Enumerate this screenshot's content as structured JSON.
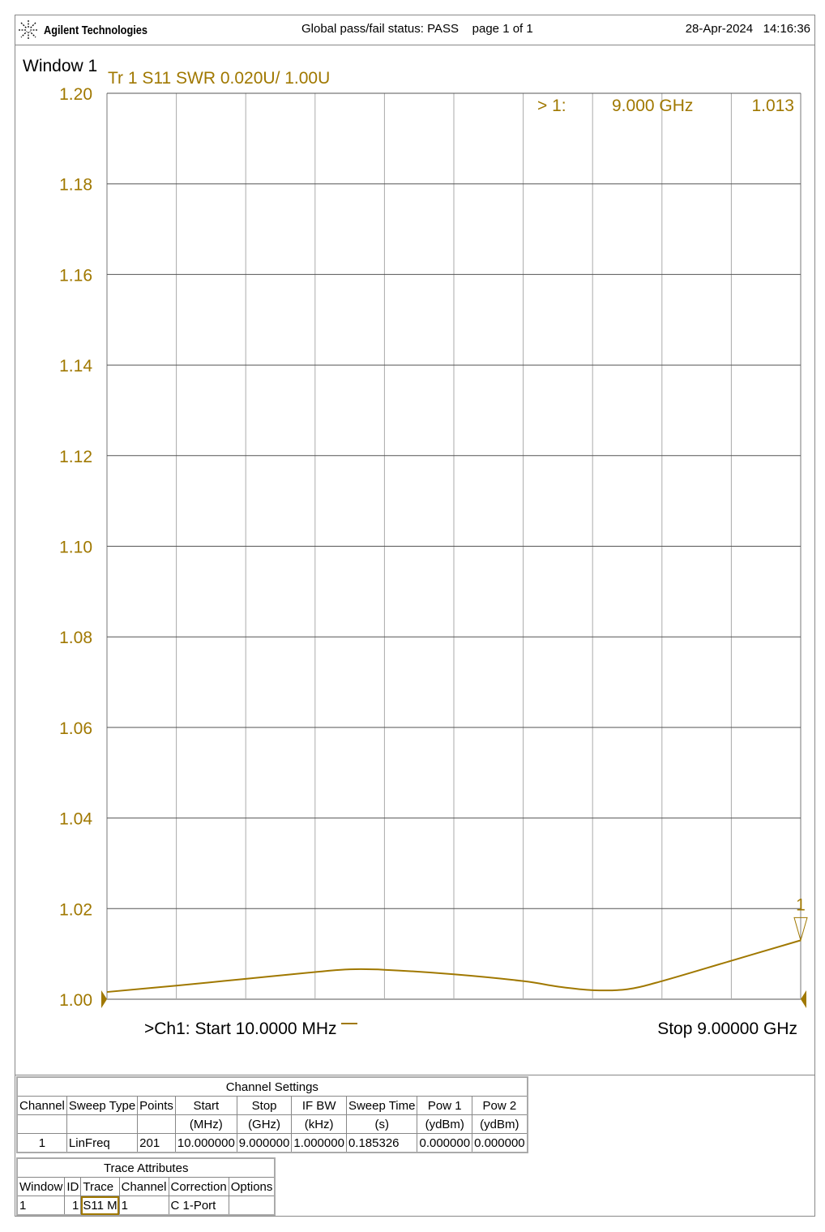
{
  "header": {
    "brand": "Agilent Technologies",
    "status": "Global pass/fail status: PASS",
    "page": "page  1 of  1",
    "date": "28-Apr-2024",
    "time": "14:16:36"
  },
  "window_label": "Window 1",
  "trace_title": "Tr  1   S11 SWR 0.020U/  1.00U",
  "marker": {
    "label": "> 1:",
    "freq": "9.000 GHz",
    "value": "1.013",
    "flag": "1"
  },
  "start_label": ">Ch1:   Start  10.0000 MHz",
  "stop_label": "Stop  9.00000 GHz",
  "colors": {
    "trace": "#a07800",
    "grid": "#999999"
  },
  "chart_data": {
    "type": "line",
    "title": "Tr  1   S11 SWR 0.020U/  1.00U",
    "xlim": [
      0.01,
      9.0
    ],
    "ylim": [
      1.0,
      1.2
    ],
    "yticks": [
      "1.20",
      "1.18",
      "1.16",
      "1.14",
      "1.12",
      "1.10",
      "1.08",
      "1.06",
      "1.04",
      "1.02",
      "1.00"
    ],
    "x_divisions": 10,
    "grid": true,
    "series": [
      {
        "x": [
          0.01,
          0.909,
          1.808,
          2.707,
          3.16,
          3.606,
          4.505,
          5.404,
          5.85,
          6.303,
          6.75,
          7.202,
          8.101,
          9.0
        ],
        "y": [
          1.0016,
          1.003,
          1.0045,
          1.006,
          1.0066,
          1.0065,
          1.0055,
          1.004,
          1.0028,
          1.002,
          1.0022,
          1.004,
          1.0085,
          1.013
        ]
      }
    ]
  },
  "channel_settings": {
    "title": "Channel Settings",
    "headers": [
      [
        "Channel",
        ""
      ],
      [
        "Sweep Type",
        ""
      ],
      [
        "Points",
        ""
      ],
      [
        "Start",
        "(MHz)"
      ],
      [
        "Stop",
        "(GHz)"
      ],
      [
        "IF BW",
        "(kHz)"
      ],
      [
        "Sweep Time",
        "(s)"
      ],
      [
        "Pow 1",
        "(ydBm)"
      ],
      [
        "Pow 2",
        "(ydBm)"
      ]
    ],
    "row": [
      "1",
      "LinFreq",
      "201",
      "10.000000",
      "9.000000",
      "1.000000",
      "0.185326",
      "0.000000",
      "0.000000"
    ]
  },
  "trace_attributes": {
    "title": "Trace Attributes",
    "headers": [
      "Window",
      "ID",
      "Trace",
      "Channel",
      "Correction",
      "Options"
    ],
    "row": [
      "1",
      "1",
      "S11 M",
      "1",
      "C 1-Port",
      ""
    ]
  }
}
